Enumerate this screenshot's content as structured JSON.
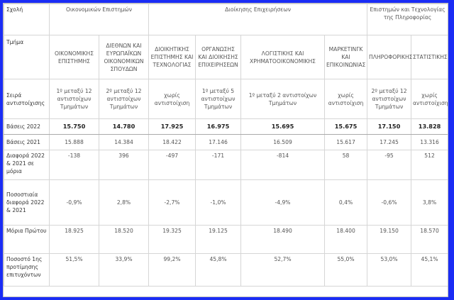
{
  "header": {
    "label": "Σχολή",
    "groups": [
      {
        "name": "Οικονομικών Επιστημών",
        "span": 2
      },
      {
        "name": "Διοίκησης Επιχειρήσεων",
        "span": 4
      },
      {
        "name": "Επιστημών και Τεχνολογίας της Πληροφορίας",
        "span": 2
      }
    ]
  },
  "dept_label": "Τμήμα",
  "departments": [
    "ΟΙΚΟΝΟΜΙΚΗΣ ΕΠΙΣΤΗΜΗΣ",
    "ΔΙΕΘΝΩΝ ΚΑΙ ΕΥΡΩΠΑΪΚΩΝ ΟΙΚΟΝΟΜΙΚΩΝ ΣΠΟΥΔΩΝ",
    "ΔΙΟΙΚΗΤΙΚΗΣ ΕΠΙΣΤΗΜΗΣ ΚΑΙ ΤΕΧΝΟΛΟΓΙΑΣ",
    "ΟΡΓΑΝΩΣΗΣ ΚΑΙ ΔΙΟΙΚΗΣΗΣ ΕΠΙΧΕΙΡΗΣΕΩΝ",
    "ΛΟΓΙΣΤΙΚΗΣ ΚΑΙ ΧΡΗΜΑΤΟΟΙΚΟΝΟΜΙΚΗΣ",
    "ΜΑΡΚΕΤΙΝΓΚ ΚΑΙ ΕΠΙΚΟΙΝΩΝΙΑΣ",
    "ΠΛΗΡΟΦΟΡΙΚΗΣ",
    "ΣΤΑΤΙΣΤΙΚΗΣ"
  ],
  "rows": [
    {
      "label": "Σειρά αντιστοίχισης",
      "values": [
        "1º μεταξύ 12 αντιστοίχων Τμημάτων",
        "2º μεταξύ 12 αντιστοίχων Τμημάτων",
        "χωρίς αντιστοίχιση",
        "1º μεταξύ 5 αντιστοίχων Τμημάτων",
        "1º μεταξύ 2 αντιστοίχων Τμημάτων",
        "χωρίς αντιστοίχιση",
        "2º μεταξύ 12 αντιστοίχων Τμημάτων",
        "χωρίς αντιστοίχιση"
      ]
    },
    {
      "label": "Βάσεις 2022",
      "values": [
        "15.750",
        "14.780",
        "17.925",
        "16.975",
        "15.695",
        "15.675",
        "17.150",
        "13.828"
      ]
    },
    {
      "label": "Βάσεις 2021",
      "values": [
        "15.888",
        "14.384",
        "18.422",
        "17.146",
        "16.509",
        "15.617",
        "17.245",
        "13.316"
      ]
    },
    {
      "label": "Διαφορά 2022 & 2021 σε μόρια",
      "values": [
        "-138",
        "396",
        "-497",
        "-171",
        "-814",
        "58",
        "-95",
        "512"
      ]
    },
    {
      "label": "Ποσοστιαία διαφορά 2022 & 2021",
      "values": [
        "-0,9%",
        "2,8%",
        "-2,7%",
        "-1,0%",
        "-4,9%",
        "0,4%",
        "-0,6%",
        "3,8%"
      ]
    },
    {
      "label": "Μόρια Πρώτου",
      "values": [
        "18.925",
        "18.520",
        "19.325",
        "19.125",
        "18.490",
        "18.400",
        "19.150",
        "18.570"
      ]
    },
    {
      "label": "Ποσοστό 1ης προτίμησης επιτυχόντων",
      "values": [
        "51,5%",
        "33,9%",
        "99,2%",
        "45,8%",
        "52,7%",
        "55,0%",
        "53,0%",
        "45,1%"
      ]
    }
  ]
}
